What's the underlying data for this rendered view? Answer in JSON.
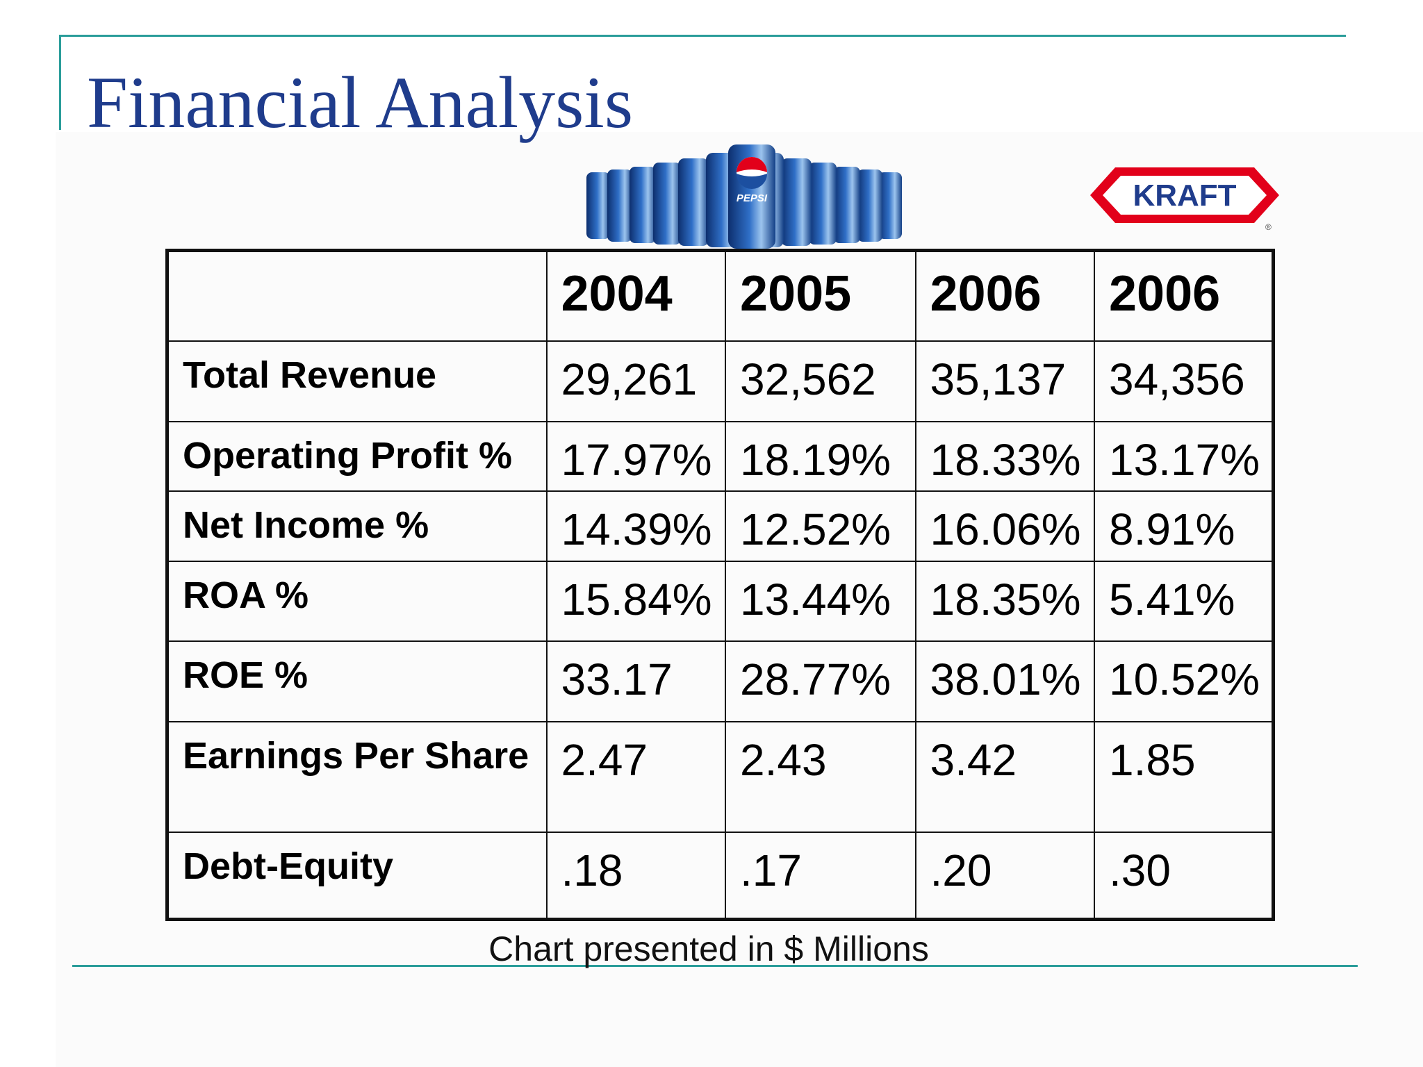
{
  "slide": {
    "title": "Financial Analysis",
    "footnote": "Chart presented in $ Millions",
    "colors": {
      "title": "#1f3c8c",
      "rule": "#2a9d9a",
      "kraft_red": "#e2001a",
      "kraft_blue": "#1f3c8c",
      "pepsi_blue": "#1c4fa0"
    }
  },
  "logos": {
    "pepsi": {
      "can_text": "PEPSI"
    },
    "kraft": {
      "text": "KRAFT",
      "registered": "®"
    }
  },
  "table": {
    "years": [
      "2004",
      "2005",
      "2006",
      "2006"
    ],
    "rows": [
      {
        "label": "Total Revenue",
        "values": [
          "29,261",
          "32,562",
          "35,137",
          "34,356"
        ]
      },
      {
        "label": "Operating Profit %",
        "values": [
          "17.97%",
          "18.19%",
          "18.33%",
          "13.17%"
        ]
      },
      {
        "label": "Net Income %",
        "values": [
          "14.39%",
          "12.52%",
          "16.06%",
          "8.91%"
        ]
      },
      {
        "label": "ROA %",
        "values": [
          "15.84%",
          "13.44%",
          "18.35%",
          "5.41%"
        ]
      },
      {
        "label": "ROE %",
        "values": [
          "33.17",
          "28.77%",
          "38.01%",
          "10.52%"
        ]
      },
      {
        "label": "Earnings Per Share",
        "values": [
          "2.47",
          "2.43",
          "3.42",
          "1.85"
        ]
      },
      {
        "label": "Debt-Equity",
        "values": [
          ".18",
          ".17",
          ".20",
          ".30"
        ]
      }
    ]
  }
}
